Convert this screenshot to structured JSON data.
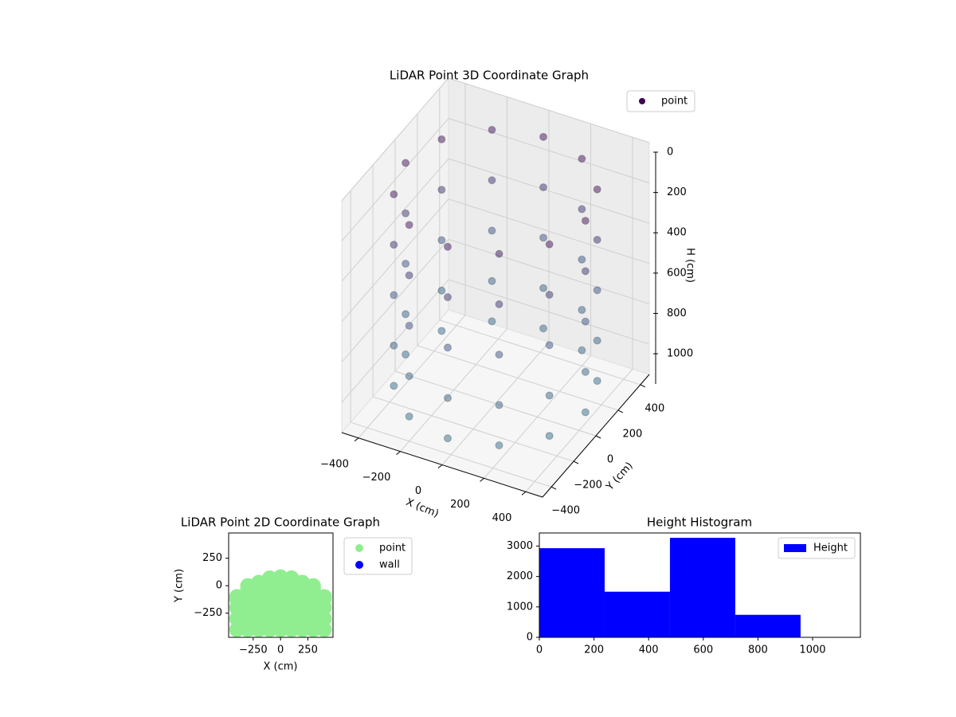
{
  "chart_data": [
    {
      "type": "scatter3d",
      "title": "LiDAR Point 3D Coordinate Graph",
      "xlabel": "X (cm)",
      "ylabel": "Y (cm)",
      "zlabel": "H (cm)",
      "xlim": [
        -480,
        480
      ],
      "ylim": [
        -480,
        480
      ],
      "zlim": [
        0,
        1150
      ],
      "z_inverted": true,
      "xticks": [
        {
          "value": -400,
          "label": "−400"
        },
        {
          "value": -200,
          "label": "−200"
        },
        0,
        200,
        400
      ],
      "yticks": [
        {
          "value": -400,
          "label": "−400"
        },
        {
          "value": -200,
          "label": "−200"
        },
        0,
        200,
        400
      ],
      "zticks": [
        0,
        200,
        400,
        600,
        800,
        1000
      ],
      "colormap": "viridis",
      "legend": "upper right",
      "grid": true,
      "series": [
        {
          "name": "point",
          "color": "#440154",
          "x": [
            430,
            372,
            215,
            0,
            -215,
            -372,
            -430,
            -372,
            -215,
            0,
            215,
            372,
            430,
            372,
            215,
            0,
            -215,
            -372,
            -430,
            -372,
            -215,
            0,
            215,
            372,
            430,
            372,
            215,
            0,
            -215,
            -372,
            -430,
            -372,
            -215,
            0,
            215,
            372,
            430,
            372,
            215,
            0,
            -215,
            -372,
            -430,
            -372,
            -215,
            0,
            215,
            372,
            430,
            372,
            215,
            0,
            -215,
            -372,
            -430,
            -372,
            -215,
            0,
            215,
            372
          ],
          "y": [
            0,
            215,
            372,
            430,
            372,
            215,
            0,
            -215,
            -372,
            -430,
            -372,
            -215,
            0,
            215,
            372,
            430,
            372,
            215,
            0,
            -215,
            -372,
            -430,
            -372,
            -215,
            0,
            215,
            372,
            430,
            372,
            215,
            0,
            -215,
            -372,
            -430,
            -372,
            -215,
            0,
            215,
            372,
            430,
            372,
            215,
            0,
            -215,
            -372,
            -430,
            -372,
            -215,
            0,
            215,
            372,
            430,
            372,
            215,
            0,
            -215,
            -372,
            -430,
            -372,
            -215
          ],
          "z": [
            100,
            100,
            100,
            100,
            100,
            100,
            100,
            100,
            100,
            100,
            100,
            100,
            350,
            350,
            350,
            350,
            350,
            350,
            350,
            350,
            350,
            350,
            350,
            350,
            600,
            600,
            600,
            600,
            600,
            600,
            600,
            600,
            600,
            600,
            600,
            600,
            850,
            850,
            850,
            850,
            850,
            850,
            850,
            850,
            850,
            850,
            850,
            850,
            1050,
            1050,
            1050,
            1050,
            1050,
            1050,
            1050,
            1050,
            1050,
            1050,
            1050,
            1050
          ]
        }
      ]
    },
    {
      "type": "scatter",
      "title": "LiDAR Point 2D Coordinate Graph",
      "xlabel": "X (cm)",
      "ylabel": "Y (cm)",
      "xlim": [
        -475,
        480
      ],
      "ylim": [
        -470,
        480
      ],
      "xticks": [
        {
          "value": -250,
          "label": "−250"
        },
        0,
        250
      ],
      "yticks": [
        {
          "value": -250,
          "label": "−250"
        },
        0,
        250
      ],
      "legend": "outside right",
      "series": [
        {
          "name": "point",
          "color": "#90ee90",
          "x": [
            -400,
            -400,
            -400,
            -400,
            -400,
            -300,
            -300,
            -300,
            -300,
            -300,
            -300,
            -200,
            -200,
            -200,
            -200,
            -200,
            -200,
            -100,
            -100,
            -100,
            -100,
            -100,
            -100,
            0,
            0,
            0,
            0,
            0,
            0,
            100,
            100,
            100,
            100,
            100,
            100,
            200,
            200,
            200,
            200,
            200,
            200,
            300,
            300,
            300,
            300,
            300,
            300,
            400,
            400,
            400,
            400,
            400
          ],
          "y": [
            -400,
            -300,
            -200,
            -100,
            -120,
            -400,
            -300,
            -200,
            -100,
            0,
            -30,
            -400,
            -300,
            -200,
            -100,
            0,
            30,
            -400,
            -300,
            -200,
            -100,
            0,
            70,
            -400,
            -300,
            -200,
            -100,
            0,
            80,
            -400,
            -300,
            -200,
            -100,
            0,
            70,
            -400,
            -300,
            -200,
            -100,
            0,
            30,
            -400,
            -300,
            -200,
            -100,
            0,
            -30,
            -400,
            -300,
            -200,
            -100,
            -120
          ]
        },
        {
          "name": "wall",
          "color": "#0000ff",
          "x": [],
          "y": []
        }
      ]
    },
    {
      "type": "histogram",
      "title": "Height Histogram",
      "bins": [
        0,
        239,
        478,
        717,
        956
      ],
      "counts": [
        2930,
        1500,
        3270,
        740
      ],
      "series_name": "Height",
      "color": "#0000ff",
      "xlim": [
        0,
        1175
      ],
      "ylim": [
        0,
        3430
      ],
      "xticks": [
        0,
        200,
        400,
        600,
        800,
        1000
      ],
      "yticks": [
        0,
        1000,
        2000,
        3000
      ],
      "legend": "upper right"
    }
  ]
}
